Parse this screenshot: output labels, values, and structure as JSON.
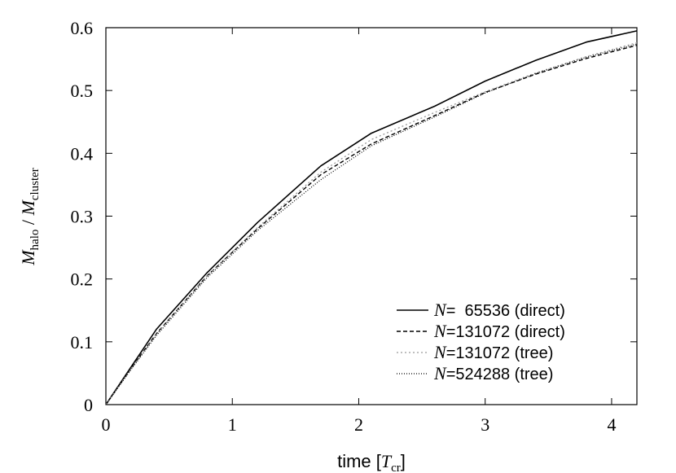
{
  "chart_data": {
    "type": "line",
    "title": "",
    "xlabel": {
      "prefix": "time [",
      "var": "T",
      "sub": "cr",
      "suffix": "]"
    },
    "ylabel": {
      "num_var": "M",
      "num_sub": "halo",
      "sep": " / ",
      "den_var": "M",
      "den_sub": "cluster"
    },
    "xlim": [
      0,
      4.2
    ],
    "ylim": [
      0,
      0.6
    ],
    "xticks": [
      "0",
      "1",
      "2",
      "3",
      "4"
    ],
    "yticks": [
      "0",
      "0.1",
      "0.2",
      "0.3",
      "0.4",
      "0.5",
      "0.6"
    ],
    "legend_position": "bottom-right",
    "grid": false,
    "series": [
      {
        "name_var": "N",
        "name_rest": "=  65536 (direct)",
        "style": "solid",
        "color": "#000000",
        "x": [
          0,
          0.2,
          0.4,
          0.8,
          1.2,
          1.7,
          2.1,
          2.6,
          3.0,
          3.4,
          3.8,
          4.2
        ],
        "y": [
          0,
          0.06,
          0.12,
          0.21,
          0.29,
          0.38,
          0.432,
          0.475,
          0.515,
          0.548,
          0.577,
          0.595
        ]
      },
      {
        "name_var": "N",
        "name_rest": "=131072 (direct)",
        "style": "dashed",
        "color": "#000000",
        "x": [
          0,
          0.2,
          0.4,
          0.8,
          1.2,
          1.7,
          2.1,
          2.6,
          3.0,
          3.4,
          3.8,
          4.2
        ],
        "y": [
          0,
          0.058,
          0.113,
          0.205,
          0.28,
          0.366,
          0.415,
          0.46,
          0.497,
          0.526,
          0.551,
          0.572
        ]
      },
      {
        "name_var": "N",
        "name_rest": "=131072 (tree)",
        "style": "dotted",
        "color": "#999999",
        "x": [
          0,
          0.2,
          0.4,
          0.8,
          1.2,
          1.7,
          2.1,
          2.6,
          3.0,
          3.4,
          3.8,
          4.2
        ],
        "y": [
          0,
          0.057,
          0.112,
          0.205,
          0.282,
          0.37,
          0.422,
          0.465,
          0.498,
          0.528,
          0.554,
          0.576
        ]
      },
      {
        "name_var": "N",
        "name_rest": "=524288 (tree)",
        "style": "finedot",
        "color": "#000000",
        "x": [
          0,
          0.2,
          0.4,
          0.8,
          1.2,
          1.7,
          2.1,
          2.6,
          3.0,
          3.4,
          3.8,
          4.2
        ],
        "y": [
          0,
          0.056,
          0.11,
          0.202,
          0.277,
          0.358,
          0.412,
          0.458,
          0.496,
          0.527,
          0.553,
          0.574
        ]
      }
    ]
  }
}
